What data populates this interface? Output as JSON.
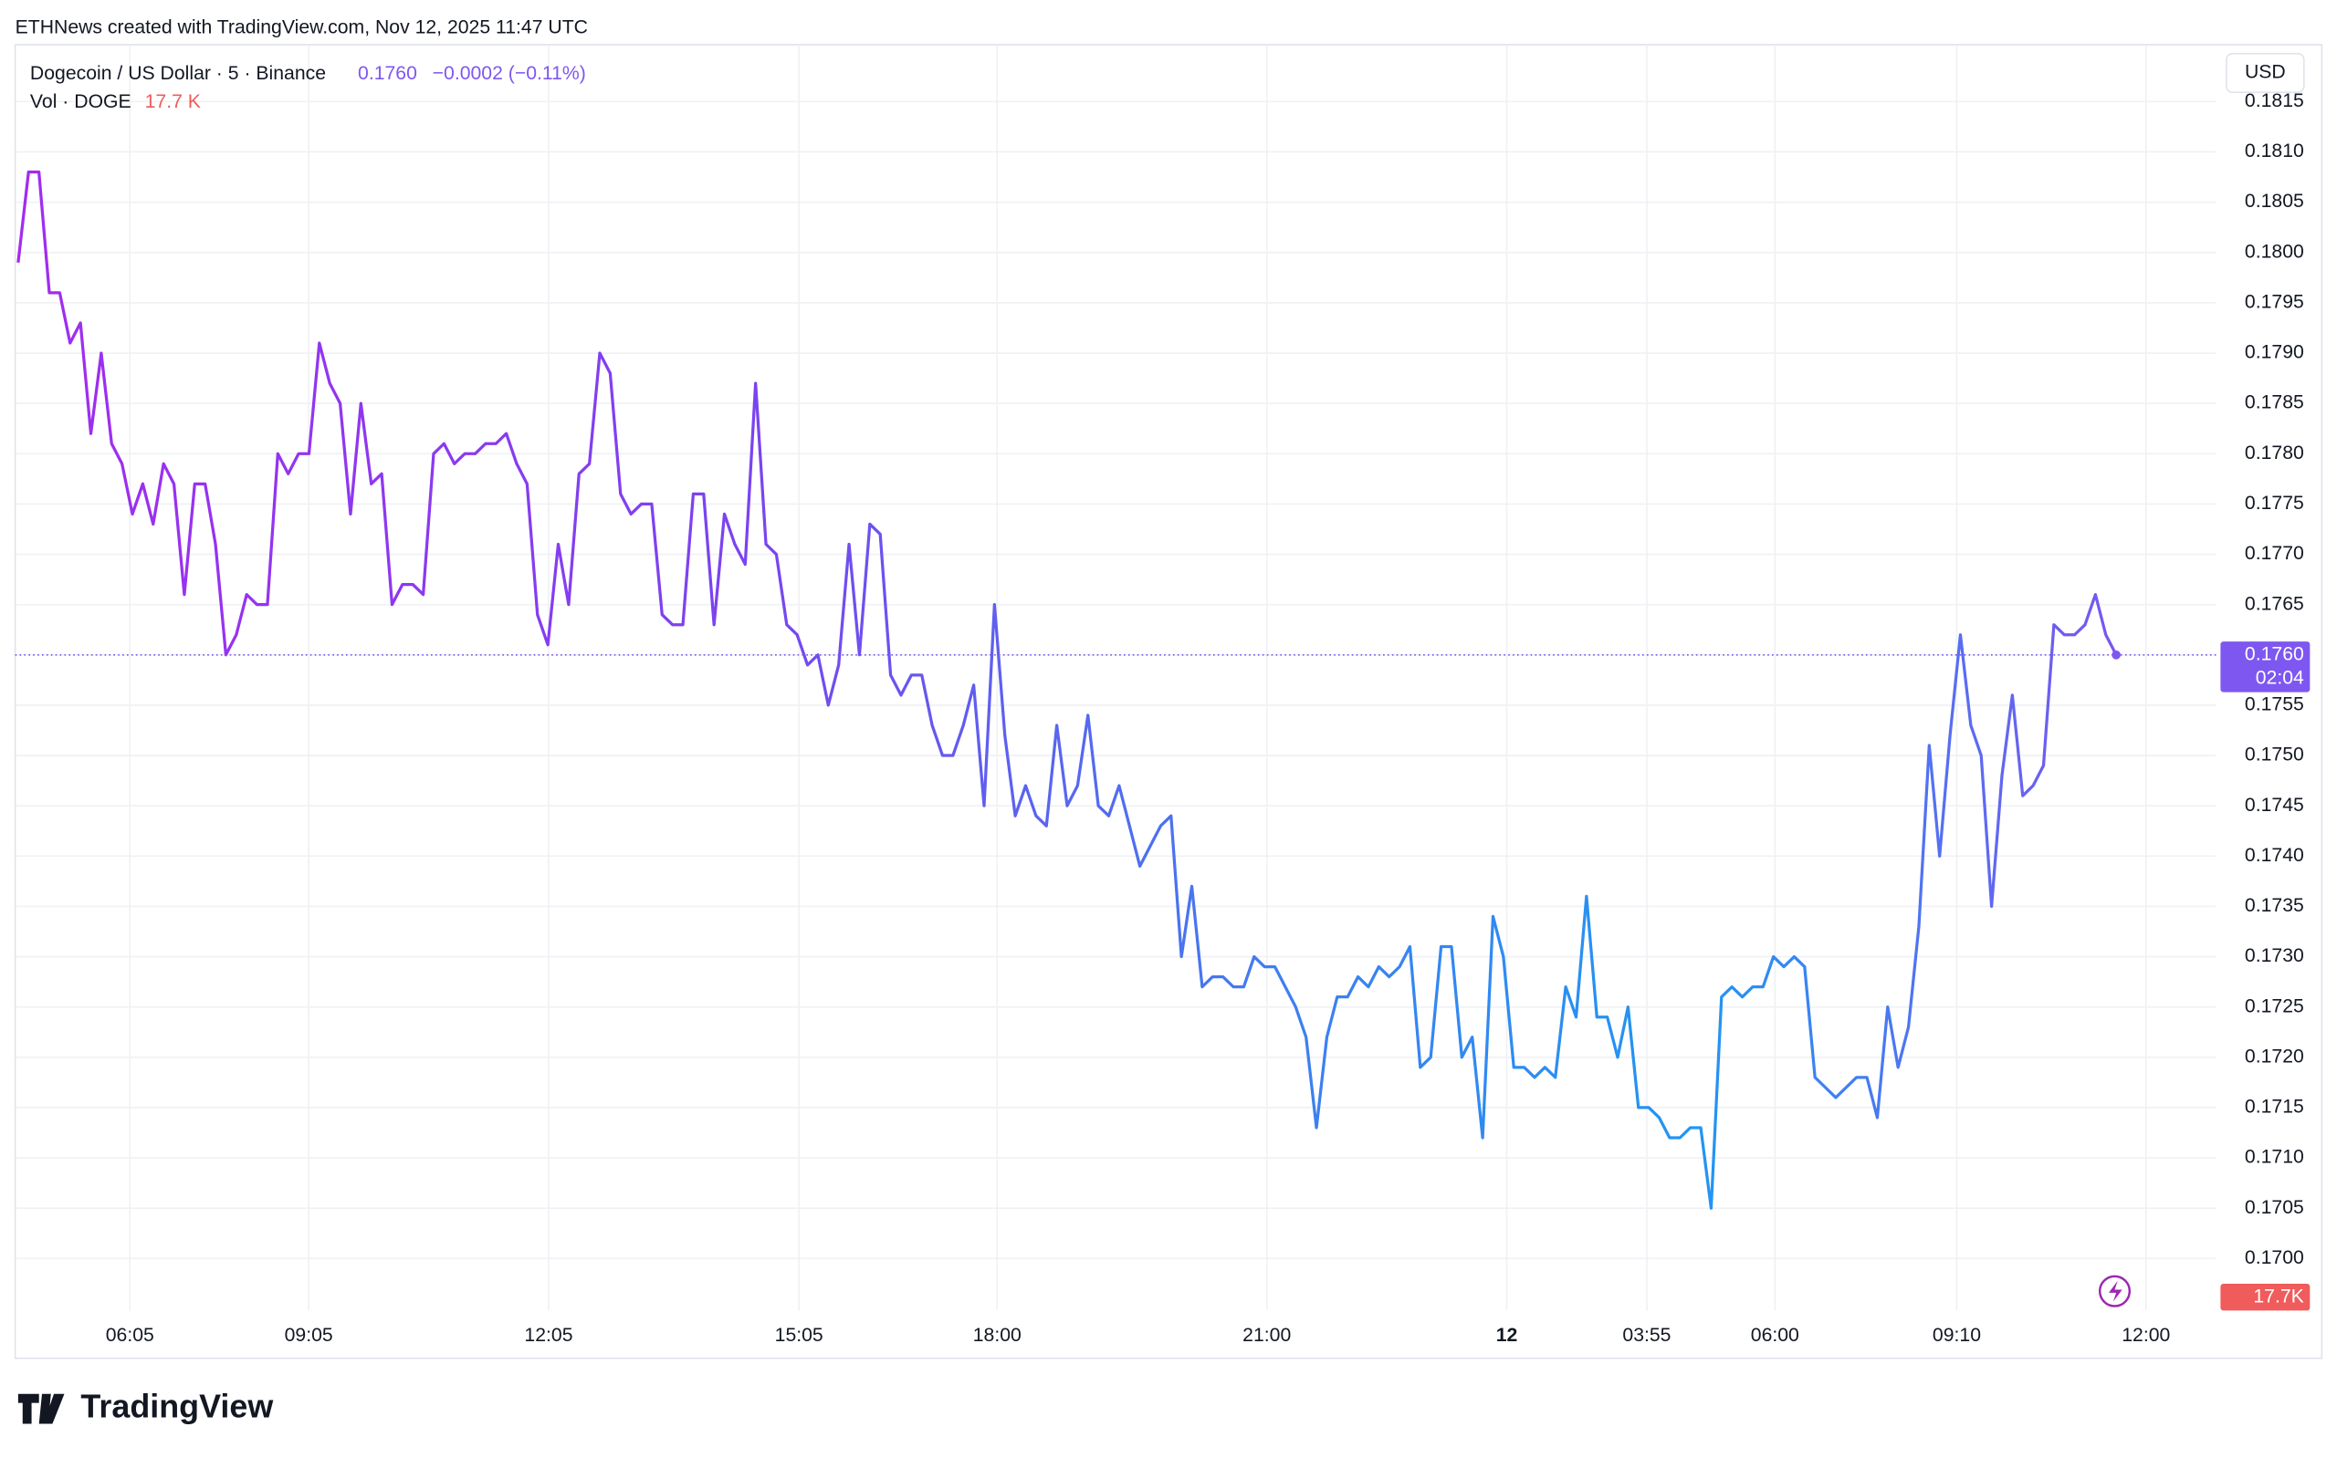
{
  "header": {
    "credit": "ETHNews created with TradingView.com, Nov 12, 2025 11:47 UTC",
    "symbol": "Dogecoin / US Dollar · 5 · Binance",
    "price": "0.1760",
    "change": "−0.0002 (−0.11%)",
    "volume_name": "Vol · DOGE",
    "volume": "17.7 K",
    "currency": "USD",
    "brand": "TradingView"
  },
  "chart_data": {
    "type": "line",
    "series": [
      {
        "name": "Dogecoin / US Dollar",
        "colors": [
          "#a12cf0",
          "#7a44f0",
          "#3f7ef0",
          "#2196f3",
          "#7a55f0"
        ],
        "values": [
          0.1799,
          0.1808,
          0.1808,
          0.1796,
          0.1796,
          0.1791,
          0.1793,
          0.1782,
          0.179,
          0.1781,
          0.1779,
          0.1774,
          0.1777,
          0.1773,
          0.1779,
          0.1777,
          0.1766,
          0.1777,
          0.1777,
          0.1771,
          0.176,
          0.1762,
          0.1766,
          0.1765,
          0.1765,
          0.178,
          0.1778,
          0.178,
          0.178,
          0.1791,
          0.1787,
          0.1785,
          0.1774,
          0.1785,
          0.1777,
          0.1778,
          0.1765,
          0.1767,
          0.1767,
          0.1766,
          0.178,
          0.1781,
          0.1779,
          0.178,
          0.178,
          0.1781,
          0.1781,
          0.1782,
          0.1779,
          0.1777,
          0.1764,
          0.1761,
          0.1771,
          0.1765,
          0.1778,
          0.1779,
          0.179,
          0.1788,
          0.1776,
          0.1774,
          0.1775,
          0.1775,
          0.1764,
          0.1763,
          0.1763,
          0.1776,
          0.1776,
          0.1763,
          0.1774,
          0.1771,
          0.1769,
          0.1787,
          0.1771,
          0.177,
          0.1763,
          0.1762,
          0.1759,
          0.176,
          0.1755,
          0.1759,
          0.1771,
          0.176,
          0.1773,
          0.1772,
          0.1758,
          0.1756,
          0.1758,
          0.1758,
          0.1753,
          0.175,
          0.175,
          0.1753,
          0.1757,
          0.1745,
          0.1765,
          0.1752,
          0.1744,
          0.1747,
          0.1744,
          0.1743,
          0.1753,
          0.1745,
          0.1747,
          0.1754,
          0.1745,
          0.1744,
          0.1747,
          0.1743,
          0.1739,
          0.1741,
          0.1743,
          0.1744,
          0.173,
          0.1737,
          0.1727,
          0.1728,
          0.1728,
          0.1727,
          0.1727,
          0.173,
          0.1729,
          0.1729,
          0.1727,
          0.1725,
          0.1722,
          0.1713,
          0.1722,
          0.1726,
          0.1726,
          0.1728,
          0.1727,
          0.1729,
          0.1728,
          0.1729,
          0.1731,
          0.1719,
          0.172,
          0.1731,
          0.1731,
          0.172,
          0.1722,
          0.1712,
          0.1734,
          0.173,
          0.1719,
          0.1719,
          0.1718,
          0.1719,
          0.1718,
          0.1727,
          0.1724,
          0.1736,
          0.1724,
          0.1724,
          0.172,
          0.1725,
          0.1715,
          0.1715,
          0.1714,
          0.1712,
          0.1712,
          0.1713,
          0.1713,
          0.1705,
          0.1726,
          0.1727,
          0.1726,
          0.1727,
          0.1727,
          0.173,
          0.1729,
          0.173,
          0.1729,
          0.1718,
          0.1717,
          0.1716,
          0.1717,
          0.1718,
          0.1718,
          0.1714,
          0.1725,
          0.1719,
          0.1723,
          0.1733,
          0.1751,
          0.174,
          0.1752,
          0.1762,
          0.1753,
          0.175,
          0.1735,
          0.1748,
          0.1756,
          0.1746,
          0.1747,
          0.1749,
          0.1763,
          0.1762,
          0.1762,
          0.1763,
          0.1766,
          0.1762,
          0.176
        ]
      }
    ],
    "xtick_labels": [
      "06:05",
      "09:05",
      "12:05",
      "15:05",
      "18:00",
      "21:00",
      "12",
      "03:55",
      "06:00",
      "09:10",
      "12:00"
    ],
    "ylim": [
      0.1695,
      0.1821
    ],
    "yticks": [
      {
        "value": 0.17,
        "label": "0.1700"
      },
      {
        "value": 0.1705,
        "label": "0.1705"
      },
      {
        "value": 0.171,
        "label": "0.1710"
      },
      {
        "value": 0.1715,
        "label": "0.1715"
      },
      {
        "value": 0.172,
        "label": "0.1720"
      },
      {
        "value": 0.1725,
        "label": "0.1725"
      },
      {
        "value": 0.173,
        "label": "0.1730"
      },
      {
        "value": 0.1735,
        "label": "0.1735"
      },
      {
        "value": 0.174,
        "label": "0.1740"
      },
      {
        "value": 0.1745,
        "label": "0.1745"
      },
      {
        "value": 0.175,
        "label": "0.1750"
      },
      {
        "value": 0.1755,
        "label": "0.1755"
      },
      {
        "value": 0.176,
        "label": "0.1760"
      },
      {
        "value": 0.1765,
        "label": "0.1765"
      },
      {
        "value": 0.177,
        "label": "0.1770"
      },
      {
        "value": 0.1775,
        "label": "0.1775"
      },
      {
        "value": 0.178,
        "label": "0.1780"
      },
      {
        "value": 0.1785,
        "label": "0.1785"
      },
      {
        "value": 0.179,
        "label": "0.1790"
      },
      {
        "value": 0.1795,
        "label": "0.1795"
      },
      {
        "value": 0.18,
        "label": "0.1800"
      },
      {
        "value": 0.1805,
        "label": "0.1805"
      },
      {
        "value": 0.181,
        "label": "0.1810"
      },
      {
        "value": 0.1815,
        "label": "0.1815"
      }
    ],
    "grid": true,
    "last_price": {
      "value": 0.176,
      "label": "0.1760",
      "countdown": "02:04",
      "color": "#7e57f0"
    },
    "volume_badge": {
      "label": "17.7K",
      "color": "#f05b5b"
    }
  }
}
